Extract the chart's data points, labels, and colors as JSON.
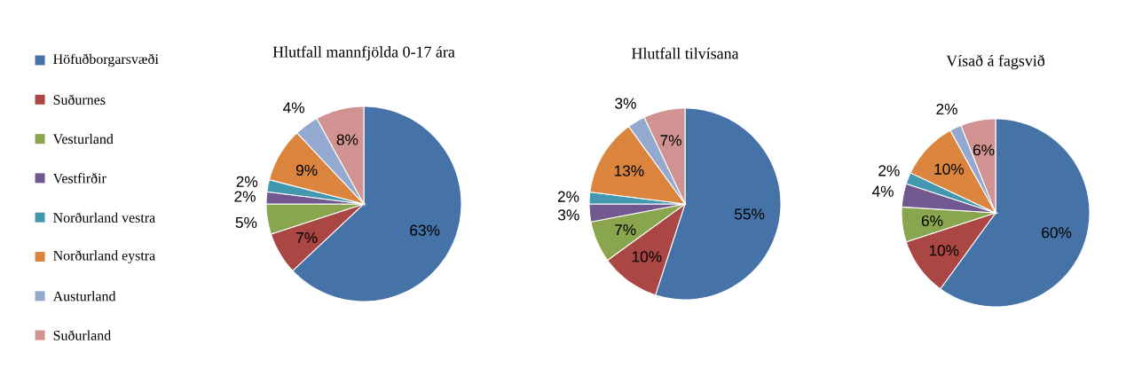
{
  "chart_data": [
    {
      "type": "pie",
      "title": "Hlutfall mannfjölda 0-17 ára",
      "legend": "left",
      "categories": [
        "Höfuðborgarsvæði",
        "Suðurnes",
        "Vesturland",
        "Vestfirðir",
        "Norðurland vestra",
        "Norðurland eystra",
        "Austurland",
        "Suðurland"
      ],
      "values": [
        63,
        7,
        5,
        2,
        2,
        9,
        4,
        8
      ],
      "value_labels": [
        "63%",
        "7%",
        "5%",
        "2%",
        "2%",
        "9%",
        "4%",
        "8%"
      ],
      "colors": [
        "#4572a7",
        "#aa4643",
        "#89a54e",
        "#71588f",
        "#4198af",
        "#db843d",
        "#93a9cf",
        "#d19392"
      ]
    },
    {
      "type": "pie",
      "title": "Hlutfall tilvísana",
      "values": [
        55,
        10,
        7,
        3,
        2,
        13,
        3,
        7
      ],
      "value_labels": [
        "55%",
        "10%",
        "7%",
        "3%",
        "2%",
        "13%",
        "3%",
        "7%"
      ],
      "colors": [
        "#4572a7",
        "#aa4643",
        "#89a54e",
        "#71588f",
        "#4198af",
        "#db843d",
        "#93a9cf",
        "#d19392"
      ]
    },
    {
      "type": "pie",
      "title": "Vísað á fagsvið",
      "values": [
        60,
        10,
        6,
        4,
        2,
        10,
        2,
        6
      ],
      "value_labels": [
        "60%",
        "10%",
        "6%",
        "4%",
        "2%",
        "10%",
        "2%",
        "6%"
      ],
      "colors": [
        "#4572a7",
        "#aa4643",
        "#89a54e",
        "#71588f",
        "#4198af",
        "#db843d",
        "#93a9cf",
        "#d19392"
      ]
    }
  ]
}
